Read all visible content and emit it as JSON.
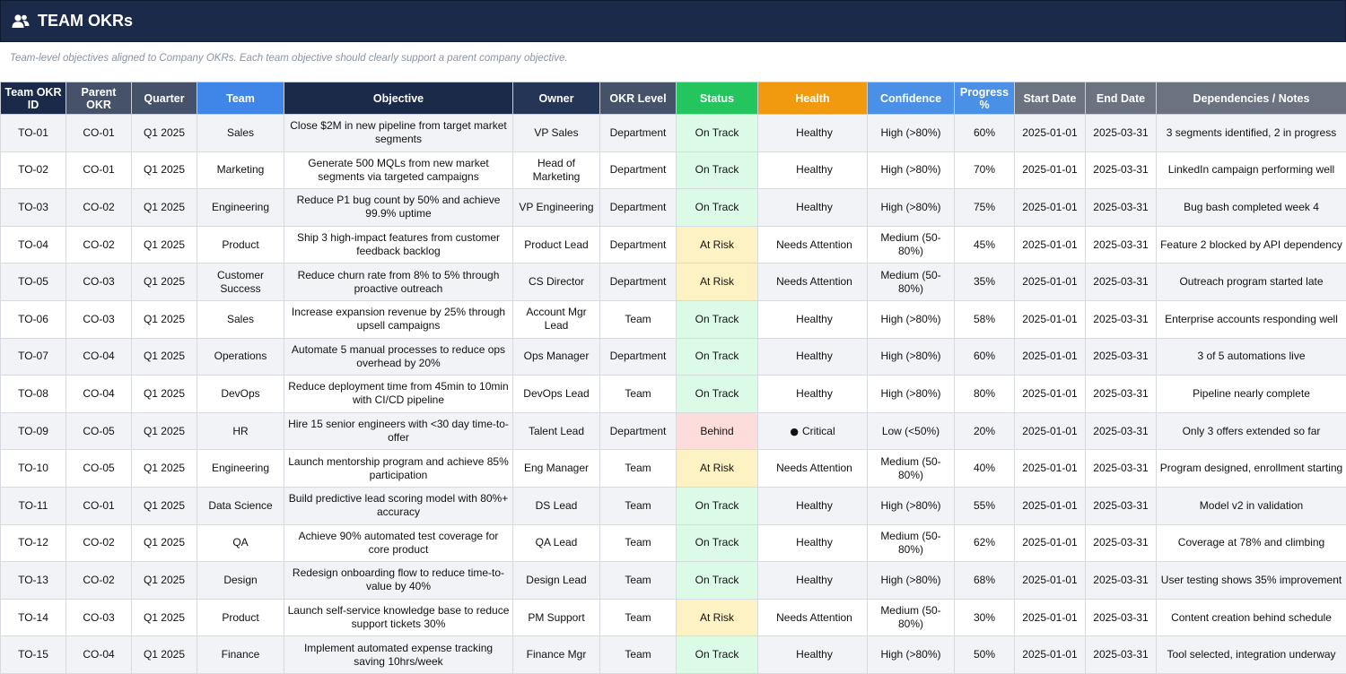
{
  "header": {
    "title": "TEAM OKRs",
    "icon": "users-icon",
    "subtitle": "Team-level objectives aligned to Company OKRs. Each team objective should clearly support a parent company objective."
  },
  "colors": {
    "header_bg": "#1c2a4a",
    "on_track": "#dcfbe6",
    "at_risk": "#fdf2c4",
    "behind": "#fddcdc",
    "status_header": "#24c45e",
    "health_header": "#f29a0f",
    "team_header": "#3f86e8"
  },
  "table": {
    "columns": [
      {
        "label": "Team OKR ID"
      },
      {
        "label": "Parent OKR"
      },
      {
        "label": "Quarter"
      },
      {
        "label": "Team"
      },
      {
        "label": "Objective"
      },
      {
        "label": "Owner"
      },
      {
        "label": "OKR Level"
      },
      {
        "label": "Status"
      },
      {
        "label": "Health"
      },
      {
        "label": "Confidence"
      },
      {
        "label": "Progress %"
      },
      {
        "label": "Start Date"
      },
      {
        "label": "End Date"
      },
      {
        "label": "Dependencies / Notes"
      }
    ],
    "rows": [
      {
        "id": "TO-01",
        "parent": "CO-01",
        "quarter": "Q1 2025",
        "team": "Sales",
        "objective": "Close $2M in new pipeline from target market segments",
        "owner": "VP Sales",
        "level": "Department",
        "status": "On Track",
        "health_icon": "",
        "health": "Healthy",
        "confidence": "High (>80%)",
        "progress": "60%",
        "start": "2025-01-01",
        "end": "2025-03-31",
        "notes": "3 segments identified, 2 in progress"
      },
      {
        "id": "TO-02",
        "parent": "CO-01",
        "quarter": "Q1 2025",
        "team": "Marketing",
        "objective": "Generate 500 MQLs from new market segments via targeted campaigns",
        "owner": "Head of Marketing",
        "level": "Department",
        "status": "On Track",
        "health_icon": "",
        "health": "Healthy",
        "confidence": "High (>80%)",
        "progress": "70%",
        "start": "2025-01-01",
        "end": "2025-03-31",
        "notes": "LinkedIn campaign performing well"
      },
      {
        "id": "TO-03",
        "parent": "CO-02",
        "quarter": "Q1 2025",
        "team": "Engineering",
        "objective": "Reduce P1 bug count by 50% and achieve 99.9% uptime",
        "owner": "VP Engineering",
        "level": "Department",
        "status": "On Track",
        "health_icon": "",
        "health": "Healthy",
        "confidence": "High (>80%)",
        "progress": "75%",
        "start": "2025-01-01",
        "end": "2025-03-31",
        "notes": "Bug bash completed week 4"
      },
      {
        "id": "TO-04",
        "parent": "CO-02",
        "quarter": "Q1 2025",
        "team": "Product",
        "objective": "Ship 3 high-impact features from customer feedback backlog",
        "owner": "Product Lead",
        "level": "Department",
        "status": "At Risk",
        "health_icon": "",
        "health": "Needs Attention",
        "confidence": "Medium (50-80%)",
        "progress": "45%",
        "start": "2025-01-01",
        "end": "2025-03-31",
        "notes": "Feature 2 blocked by API dependency"
      },
      {
        "id": "TO-05",
        "parent": "CO-03",
        "quarter": "Q1 2025",
        "team": "Customer Success",
        "objective": "Reduce churn rate from 8% to 5% through proactive outreach",
        "owner": "CS Director",
        "level": "Department",
        "status": "At Risk",
        "health_icon": "",
        "health": "Needs Attention",
        "confidence": "Medium (50-80%)",
        "progress": "35%",
        "start": "2025-01-01",
        "end": "2025-03-31",
        "notes": "Outreach program started late"
      },
      {
        "id": "TO-06",
        "parent": "CO-03",
        "quarter": "Q1 2025",
        "team": "Sales",
        "objective": "Increase expansion revenue by 25% through upsell campaigns",
        "owner": "Account Mgr Lead",
        "level": "Team",
        "status": "On Track",
        "health_icon": "",
        "health": "Healthy",
        "confidence": "High (>80%)",
        "progress": "58%",
        "start": "2025-01-01",
        "end": "2025-03-31",
        "notes": "Enterprise accounts responding well"
      },
      {
        "id": "TO-07",
        "parent": "CO-04",
        "quarter": "Q1 2025",
        "team": "Operations",
        "objective": "Automate 5 manual processes to reduce ops overhead by 20%",
        "owner": "Ops Manager",
        "level": "Department",
        "status": "On Track",
        "health_icon": "",
        "health": "Healthy",
        "confidence": "High (>80%)",
        "progress": "60%",
        "start": "2025-01-01",
        "end": "2025-03-31",
        "notes": "3 of 5 automations live"
      },
      {
        "id": "TO-08",
        "parent": "CO-04",
        "quarter": "Q1 2025",
        "team": "DevOps",
        "objective": "Reduce deployment time from 45min to 10min with CI/CD pipeline",
        "owner": "DevOps Lead",
        "level": "Team",
        "status": "On Track",
        "health_icon": "",
        "health": "Healthy",
        "confidence": "High (>80%)",
        "progress": "80%",
        "start": "2025-01-01",
        "end": "2025-03-31",
        "notes": "Pipeline nearly complete"
      },
      {
        "id": "TO-09",
        "parent": "CO-05",
        "quarter": "Q1 2025",
        "team": "HR",
        "objective": "Hire 15 senior engineers with <30 day time-to-offer",
        "owner": "Talent Lead",
        "level": "Department",
        "status": "Behind",
        "health_icon": "●",
        "health": "Critical",
        "confidence": "Low (<50%)",
        "progress": "20%",
        "start": "2025-01-01",
        "end": "2025-03-31",
        "notes": "Only 3 offers extended so far"
      },
      {
        "id": "TO-10",
        "parent": "CO-05",
        "quarter": "Q1 2025",
        "team": "Engineering",
        "objective": "Launch mentorship program and achieve 85% participation",
        "owner": "Eng Manager",
        "level": "Team",
        "status": "At Risk",
        "health_icon": "",
        "health": "Needs Attention",
        "confidence": "Medium (50-80%)",
        "progress": "40%",
        "start": "2025-01-01",
        "end": "2025-03-31",
        "notes": "Program designed, enrollment starting"
      },
      {
        "id": "TO-11",
        "parent": "CO-01",
        "quarter": "Q1 2025",
        "team": "Data Science",
        "objective": "Build predictive lead scoring model with 80%+ accuracy",
        "owner": "DS Lead",
        "level": "Team",
        "status": "On Track",
        "health_icon": "",
        "health": "Healthy",
        "confidence": "High (>80%)",
        "progress": "55%",
        "start": "2025-01-01",
        "end": "2025-03-31",
        "notes": "Model v2 in validation"
      },
      {
        "id": "TO-12",
        "parent": "CO-02",
        "quarter": "Q1 2025",
        "team": "QA",
        "objective": "Achieve 90% automated test coverage for core product",
        "owner": "QA Lead",
        "level": "Team",
        "status": "On Track",
        "health_icon": "",
        "health": "Healthy",
        "confidence": "Medium (50-80%)",
        "progress": "62%",
        "start": "2025-01-01",
        "end": "2025-03-31",
        "notes": "Coverage at 78% and climbing"
      },
      {
        "id": "TO-13",
        "parent": "CO-02",
        "quarter": "Q1 2025",
        "team": "Design",
        "objective": "Redesign onboarding flow to reduce time-to-value by 40%",
        "owner": "Design Lead",
        "level": "Team",
        "status": "On Track",
        "health_icon": "",
        "health": "Healthy",
        "confidence": "High (>80%)",
        "progress": "68%",
        "start": "2025-01-01",
        "end": "2025-03-31",
        "notes": "User testing shows 35% improvement"
      },
      {
        "id": "TO-14",
        "parent": "CO-03",
        "quarter": "Q1 2025",
        "team": "Product",
        "objective": "Launch self-service knowledge base to reduce support tickets 30%",
        "owner": "PM Support",
        "level": "Team",
        "status": "At Risk",
        "health_icon": "",
        "health": "Needs Attention",
        "confidence": "Medium (50-80%)",
        "progress": "30%",
        "start": "2025-01-01",
        "end": "2025-03-31",
        "notes": "Content creation behind schedule"
      },
      {
        "id": "TO-15",
        "parent": "CO-04",
        "quarter": "Q1 2025",
        "team": "Finance",
        "objective": "Implement automated expense tracking saving 10hrs/week",
        "owner": "Finance Mgr",
        "level": "Team",
        "status": "On Track",
        "health_icon": "",
        "health": "Healthy",
        "confidence": "High (>80%)",
        "progress": "50%",
        "start": "2025-01-01",
        "end": "2025-03-31",
        "notes": "Tool selected, integration underway"
      }
    ]
  }
}
